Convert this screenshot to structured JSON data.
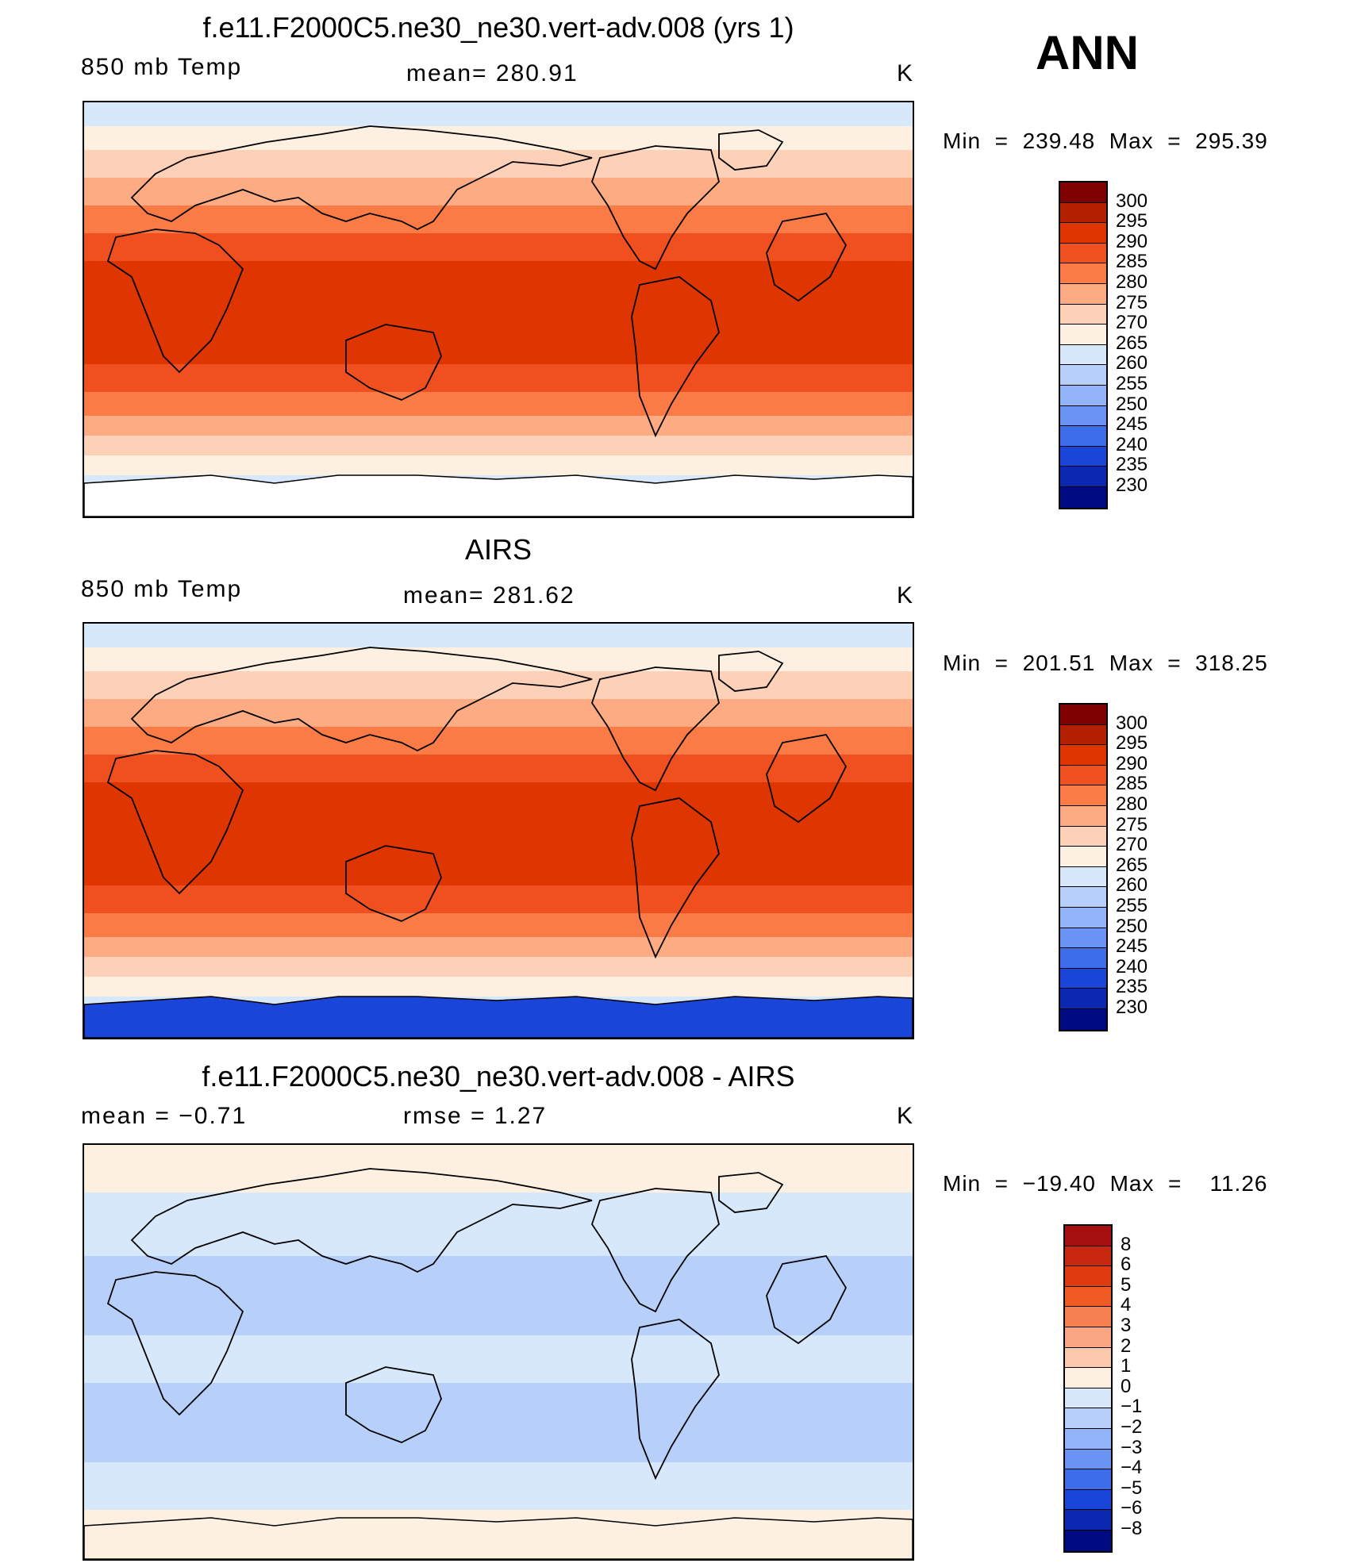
{
  "season": "ANN",
  "panels": [
    {
      "id": "model",
      "title": "f.e11.F2000C5.ne30_ne30.vert-adv.008 (yrs 1)",
      "left_label": "850 mb Temp",
      "center_label": "mean=  280.91",
      "units": "K",
      "minmax": "Min  =  239.48  Max  =  295.39",
      "legend_labels": [
        "300",
        "295",
        "290",
        "285",
        "280",
        "275",
        "270",
        "265",
        "260",
        "255",
        "250",
        "245",
        "240",
        "235",
        "230"
      ],
      "legend_colors": [
        "#7f0000",
        "#b22000",
        "#df3500",
        "#f05020",
        "#fa7b45",
        "#fcab82",
        "#fdd0b8",
        "#fef0e0",
        "#d8e8fb",
        "#b7d0fa",
        "#92b4f8",
        "#6a94f3",
        "#3d6de8",
        "#1a45d9",
        "#0a28b0",
        "#000a80"
      ],
      "map_palette": [
        "#fcab82",
        "#fdd0b8",
        "#fef0e0",
        "#d8e8fb",
        "#b7d0fa",
        "#92b4f8",
        "#fa7b45",
        "#f05020",
        "#df3500",
        "#b22000"
      ],
      "polar_fill": "#ffffff"
    },
    {
      "id": "obs",
      "title": "AIRS",
      "left_label": "850 mb Temp",
      "center_label": "mean=  281.62",
      "units": "K",
      "minmax": "Min  =  201.51  Max  =  318.25",
      "legend_labels": [
        "300",
        "295",
        "290",
        "285",
        "280",
        "275",
        "270",
        "265",
        "260",
        "255",
        "250",
        "245",
        "240",
        "235",
        "230"
      ],
      "legend_colors": [
        "#7f0000",
        "#b22000",
        "#df3500",
        "#f05020",
        "#fa7b45",
        "#fcab82",
        "#fdd0b8",
        "#fef0e0",
        "#d8e8fb",
        "#b7d0fa",
        "#92b4f8",
        "#6a94f3",
        "#3d6de8",
        "#1a45d9",
        "#0a28b0",
        "#000a80"
      ],
      "map_palette": [
        "#fcab82",
        "#fdd0b8",
        "#fef0e0",
        "#d8e8fb",
        "#b7d0fa",
        "#92b4f8",
        "#fa7b45",
        "#f05020",
        "#df3500",
        "#b22000"
      ],
      "polar_fill": "#1a45d9"
    },
    {
      "id": "diff",
      "title": "f.e11.F2000C5.ne30_ne30.vert-adv.008 - AIRS",
      "left_label": "mean  =    −0.71",
      "center_label": "rmse  =     1.27",
      "units": "K",
      "minmax": "Min  =  −19.40  Max  =    11.26",
      "legend_labels": [
        "8",
        "6",
        "5",
        "4",
        "3",
        "2",
        "1",
        "0",
        "−1",
        "−2",
        "−3",
        "−4",
        "−5",
        "−6",
        "−8"
      ],
      "legend_colors": [
        "#a50f0f",
        "#c82810",
        "#e03a10",
        "#f05a25",
        "#f78050",
        "#fba682",
        "#fdc9ad",
        "#fef0e0",
        "#d8e8fb",
        "#b7d0fa",
        "#92b4f8",
        "#6a94f3",
        "#3d6de8",
        "#1a45d9",
        "#0a28b0",
        "#000a80"
      ],
      "map_palette": [
        "#d8e8fb",
        "#b7d0fa",
        "#fef0e0",
        "#fdc9ad",
        "#92b4f8",
        "#6a94f3",
        "#fba682",
        "#3d6de8"
      ],
      "polar_fill": "#fef0e0"
    }
  ]
}
